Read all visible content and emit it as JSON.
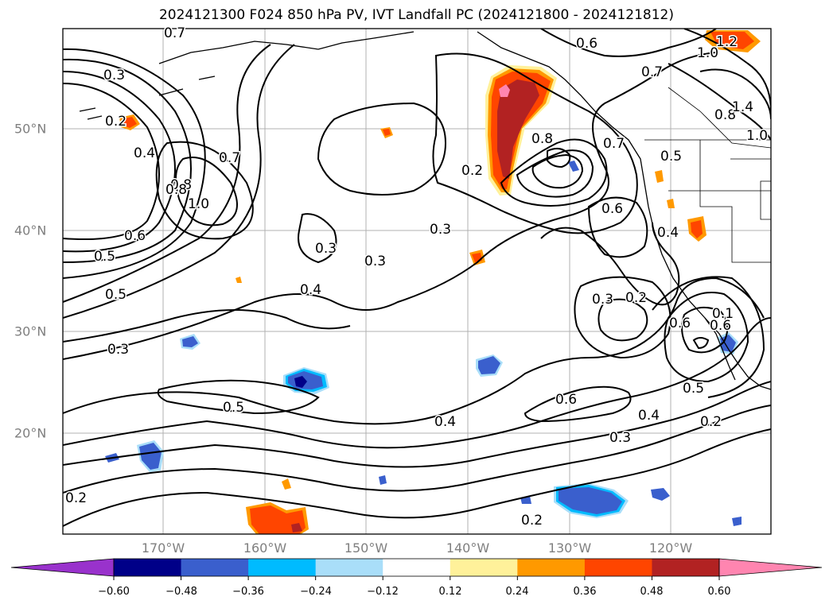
{
  "title": "2024121300 F024 850 hPa PV, IVT Landfall PC (2024121800 - 2024121812)",
  "map": {
    "lon_labels": [
      "170°W",
      "160°W",
      "150°W",
      "140°W",
      "130°W",
      "120°W"
    ],
    "lat_labels": [
      "50°N",
      "40°N",
      "30°N",
      "20°N"
    ],
    "contour_labels": [
      "0.7",
      "0.8",
      "0.3",
      "0.2",
      "0.4",
      "0.8",
      "1.0",
      "0.7",
      "0.6",
      "0.5",
      "0.5",
      "0.3",
      "0.5",
      "0.4",
      "0.3",
      "0.3",
      "0.3",
      "0.2",
      "0.8",
      "0.6",
      "0.7",
      "0.5",
      "0.4",
      "0.6",
      "0.3",
      "0.2",
      "0.6",
      "0.1",
      "0.2",
      "0.3",
      "0.4",
      "0.5",
      "0.6",
      "0.4",
      "0.2",
      "0.6",
      "0.7",
      "1.2",
      "1.0",
      "0.8",
      "1.4",
      "1.0",
      "0.2"
    ],
    "colors": {
      "contour": "#000000",
      "coast": "#000000",
      "grid": "#b0b0b0",
      "pos_light": "#fff19a",
      "pos_orange": "#ff9900",
      "pos_redorange": "#ff4500",
      "pos_darkred": "#b22222",
      "pos_pink": "#ff85b0",
      "neg_light": "#a9def9",
      "neg_cyan": "#00bbff",
      "neg_blue": "#3a5fcd",
      "neg_navy": "#000088"
    }
  },
  "colorbar": {
    "ticks": [
      "−0.60",
      "−0.48",
      "−0.36",
      "−0.24",
      "−0.12",
      "0.12",
      "0.24",
      "0.36",
      "0.48",
      "0.60"
    ],
    "colors": [
      "#9932cc",
      "#000088",
      "#3a5fcd",
      "#00bbff",
      "#a9def9",
      "#ffffff",
      "#fff19a",
      "#ff9900",
      "#ff4500",
      "#b22222",
      "#ff85b0"
    ]
  }
}
